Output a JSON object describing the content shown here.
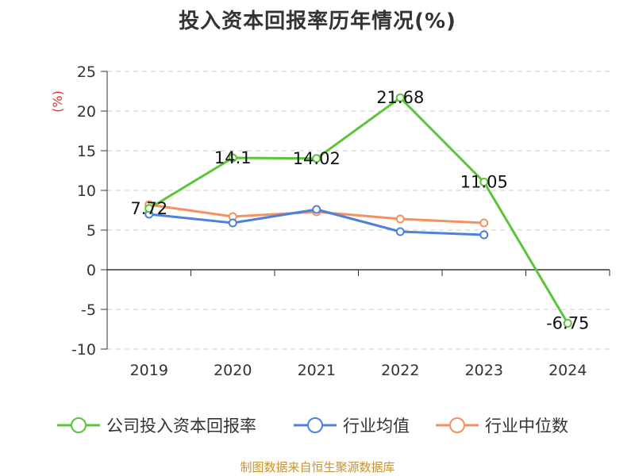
{
  "title": "投入资本回报率历年情况(%)",
  "source": "制图数据来自恒生聚源数据库",
  "chart_data": {
    "type": "line",
    "title": "投入资本回报率历年情况(%)",
    "ylabel": "(%)",
    "xlabel": "",
    "categories": [
      "2019",
      "2020",
      "2021",
      "2022",
      "2023",
      "2024"
    ],
    "ylim": [
      -10,
      25
    ],
    "yticks": [
      "25",
      "20",
      "15",
      "10",
      "5",
      "0",
      "-5",
      "-10"
    ],
    "grid": true,
    "legend_position": "bottom",
    "series": [
      {
        "name": "公司投入资本回报率",
        "color": "#5cc43a",
        "values": [
          7.72,
          14.1,
          14.02,
          21.68,
          11.05,
          -6.75
        ],
        "labels": [
          "7.72",
          "14.1",
          "14.02",
          "21.68",
          "11.05",
          "-6.75"
        ]
      },
      {
        "name": "行业均值",
        "color": "#4f81d9",
        "values": [
          7.0,
          5.9,
          7.6,
          4.8,
          4.4,
          null
        ]
      },
      {
        "name": "行业中位数",
        "color": "#f59060",
        "values": [
          8.2,
          6.7,
          7.3,
          6.4,
          5.9,
          null
        ]
      }
    ]
  }
}
